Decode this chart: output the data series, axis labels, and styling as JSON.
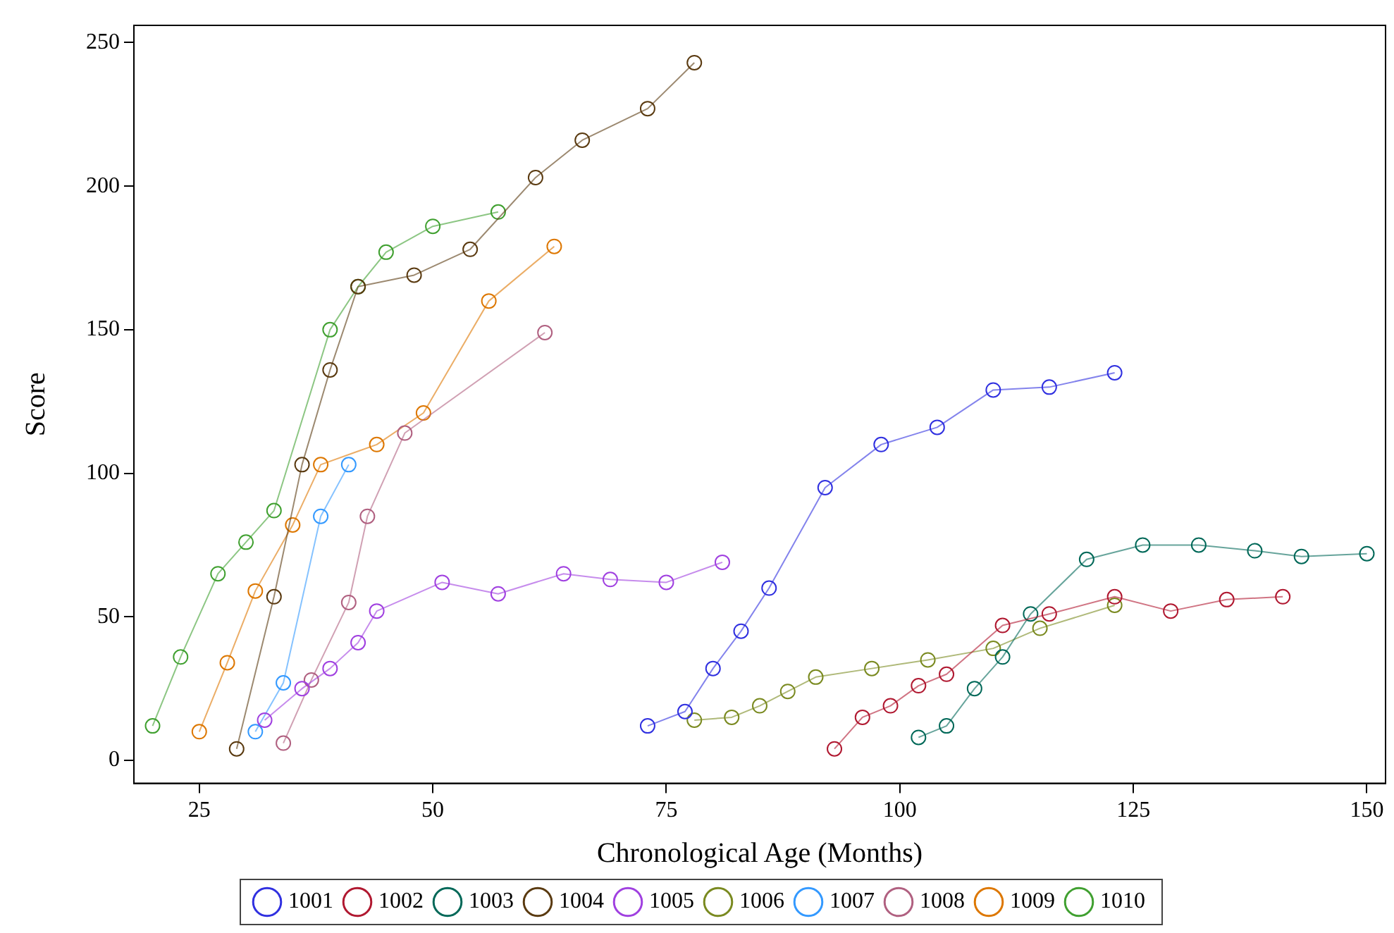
{
  "chart_data": {
    "type": "line",
    "xlabel": "Chronological Age (Months)",
    "ylabel": "Score",
    "xlim": [
      18,
      152
    ],
    "xticks": [
      25,
      50,
      75,
      100,
      125,
      150
    ],
    "ylim": [
      -8,
      256
    ],
    "yticks": [
      0,
      50,
      100,
      150,
      200,
      250
    ],
    "grid": false,
    "legend": "bottom",
    "marker": "circle",
    "line_style": "solid",
    "series": [
      {
        "name": "1001",
        "color": "#3030e0",
        "x": [
          73,
          77,
          80,
          83,
          86,
          92,
          98,
          104,
          110,
          116,
          123
        ],
        "values": [
          12,
          17,
          32,
          45,
          60,
          95,
          110,
          116,
          129,
          130,
          135
        ]
      },
      {
        "name": "1002",
        "color": "#b01830",
        "x": [
          93,
          96,
          99,
          102,
          105,
          111,
          116,
          123,
          129,
          135,
          141
        ],
        "values": [
          4,
          15,
          19,
          26,
          30,
          47,
          51,
          57,
          52,
          56,
          57
        ]
      },
      {
        "name": "1003",
        "color": "#006858",
        "x": [
          102,
          105,
          108,
          111,
          114,
          120,
          126,
          132,
          138,
          143,
          150
        ],
        "values": [
          8,
          12,
          25,
          36,
          51,
          70,
          75,
          75,
          73,
          71,
          72
        ]
      },
      {
        "name": "1004",
        "color": "#5a3a10",
        "x": [
          29,
          33,
          36,
          39,
          42,
          48,
          54,
          61,
          66,
          73,
          78
        ],
        "values": [
          4,
          57,
          103,
          136,
          165,
          169,
          178,
          203,
          216,
          227,
          243
        ]
      },
      {
        "name": "1005",
        "color": "#a040e0",
        "x": [
          32,
          36,
          39,
          42,
          44,
          51,
          57,
          64,
          69,
          75,
          81
        ],
        "values": [
          14,
          25,
          32,
          41,
          52,
          62,
          58,
          65,
          63,
          62,
          69
        ]
      },
      {
        "name": "1006",
        "color": "#7a8a20",
        "x": [
          78,
          82,
          85,
          88,
          91,
          97,
          103,
          110,
          115,
          123
        ],
        "values": [
          14,
          15,
          19,
          24,
          29,
          32,
          35,
          39,
          46,
          54
        ]
      },
      {
        "name": "1007",
        "color": "#3399ff",
        "x": [
          31,
          34,
          38,
          41
        ],
        "values": [
          10,
          27,
          85,
          103
        ]
      },
      {
        "name": "1008",
        "color": "#b06080",
        "x": [
          34,
          37,
          41,
          43,
          47,
          62
        ],
        "values": [
          6,
          28,
          55,
          85,
          114,
          149
        ]
      },
      {
        "name": "1009",
        "color": "#dd7700",
        "x": [
          25,
          28,
          31,
          35,
          38,
          44,
          49,
          56,
          63
        ],
        "values": [
          10,
          34,
          59,
          82,
          103,
          110,
          121,
          160,
          179
        ]
      },
      {
        "name": "1010",
        "color": "#40a030",
        "x": [
          20,
          23,
          27,
          30,
          33,
          39,
          42,
          45,
          50,
          57
        ],
        "values": [
          12,
          36,
          65,
          76,
          87,
          150,
          165,
          177,
          186,
          191
        ]
      }
    ]
  }
}
